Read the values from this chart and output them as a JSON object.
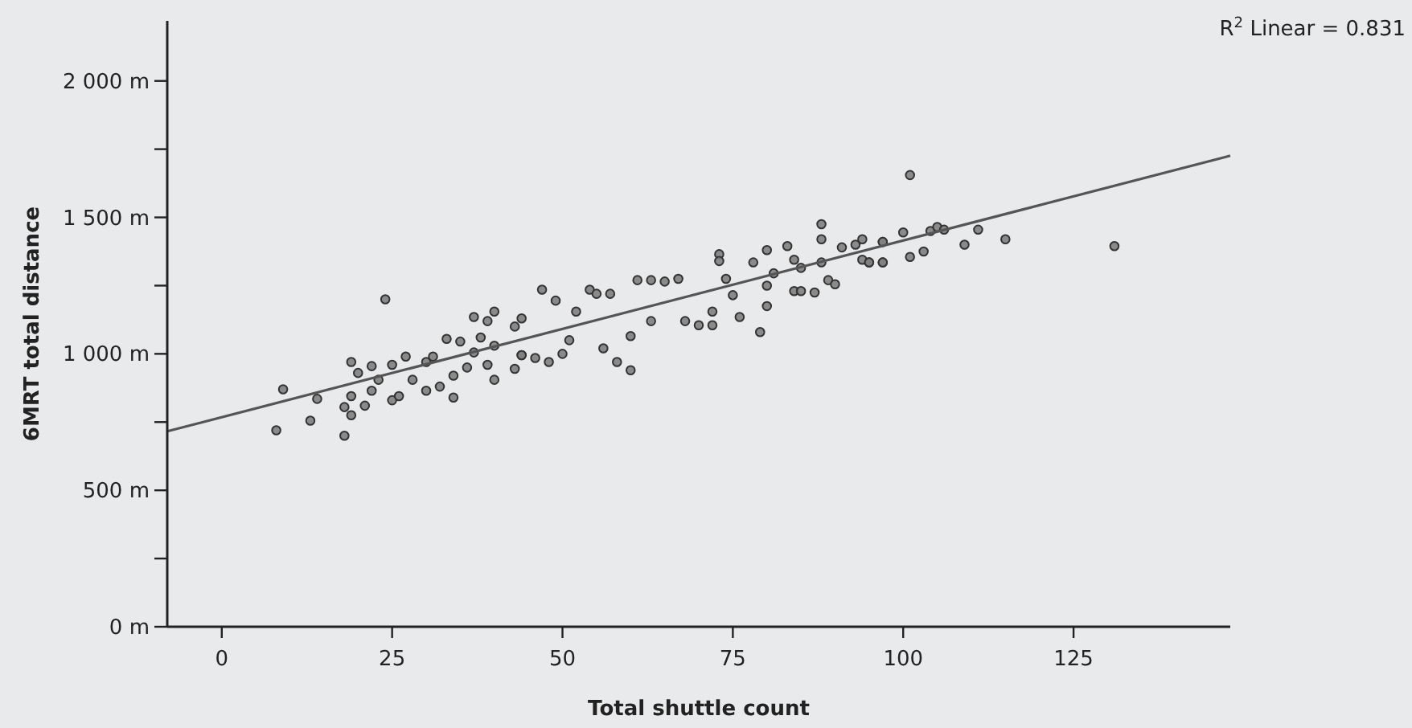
{
  "chart_data": {
    "type": "scatter",
    "xlabel": "Total shuttle count",
    "ylabel": "6MRT total distance",
    "xlim": [
      -8,
      148
    ],
    "ylim": [
      0,
      2220
    ],
    "xticks": [
      0,
      25,
      50,
      75,
      100,
      125
    ],
    "yticks": [
      {
        "value": 0,
        "label": "0 m"
      },
      {
        "value": 250,
        "label": null
      },
      {
        "value": 500,
        "label": "500 m"
      },
      {
        "value": 750,
        "label": null
      },
      {
        "value": 1000,
        "label": "1 000 m"
      },
      {
        "value": 1250,
        "label": null
      },
      {
        "value": 1500,
        "label": "1 500 m"
      },
      {
        "value": 1750,
        "label": null
      },
      {
        "value": 2000,
        "label": "2 000 m"
      }
    ],
    "grid": false,
    "marker": "circle",
    "annotations": [
      "R$^{2}$ Linear = 0.831"
    ],
    "series": [
      {
        "color": "#808080",
        "x": [
          8,
          9,
          24,
          14,
          13,
          18,
          18,
          19,
          19,
          19,
          20,
          21,
          22,
          22,
          23,
          25,
          25,
          26,
          27,
          28,
          30,
          30,
          31,
          32,
          33,
          34,
          34,
          35,
          36,
          37,
          37,
          38,
          39,
          39,
          40,
          40,
          40,
          43,
          43,
          44,
          44,
          47,
          44,
          46,
          48,
          50,
          49,
          51,
          52,
          54,
          55,
          56,
          57,
          58,
          60,
          60,
          61,
          63,
          63,
          65,
          67,
          68,
          70,
          72,
          72,
          73,
          73,
          74,
          76,
          75,
          78,
          79,
          80,
          80,
          80,
          81,
          83,
          84,
          85,
          84,
          85,
          87,
          88,
          88,
          88,
          89,
          90,
          91,
          93,
          94,
          94,
          95,
          97,
          97,
          101,
          100,
          97,
          97,
          95,
          101,
          103,
          104,
          105,
          106,
          109,
          111,
          115,
          131
        ],
        "values": [
          720,
          870,
          1200,
          835,
          755,
          700,
          805,
          775,
          845,
          970,
          930,
          810,
          955,
          865,
          905,
          830,
          960,
          845,
          990,
          905,
          865,
          970,
          990,
          880,
          1055,
          840,
          920,
          1045,
          950,
          1135,
          1005,
          1060,
          1120,
          960,
          1155,
          1030,
          905,
          945,
          1100,
          1130,
          995,
          1235,
          995,
          985,
          970,
          1000,
          1195,
          1050,
          1155,
          1235,
          1220,
          1020,
          1220,
          970,
          940,
          1065,
          1270,
          1270,
          1120,
          1265,
          1275,
          1120,
          1105,
          1105,
          1155,
          1365,
          1340,
          1275,
          1135,
          1215,
          1335,
          1080,
          1175,
          1250,
          1380,
          1295,
          1395,
          1230,
          1230,
          1345,
          1315,
          1225,
          1475,
          1420,
          1335,
          1270,
          1255,
          1390,
          1400,
          1420,
          1345,
          1335,
          1410,
          1335,
          1655,
          1445,
          1410,
          1335,
          1335,
          1355,
          1375,
          1450,
          1465,
          1455,
          1400,
          1455,
          1420,
          1395
        ]
      },
      {
        "type": "line",
        "marker": "none",
        "color": "#555555",
        "x": [
          -8,
          148
        ],
        "values": [
          716,
          1726
        ]
      }
    ]
  }
}
